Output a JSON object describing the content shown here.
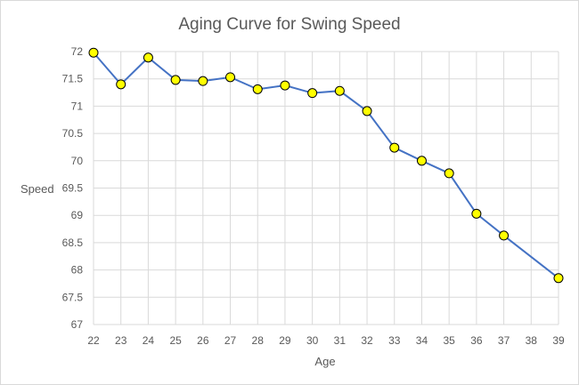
{
  "chart_data": {
    "type": "line",
    "title": "Aging Curve for Swing Speed",
    "xlabel": "Age",
    "ylabel": "Speed",
    "x": [
      22,
      23,
      24,
      25,
      26,
      27,
      28,
      29,
      30,
      31,
      32,
      33,
      34,
      35,
      36,
      37,
      38,
      39
    ],
    "x_tick_labels": [
      "22",
      "23",
      "24",
      "25",
      "26",
      "27",
      "28",
      "29",
      "30",
      "31",
      "32",
      "33",
      "34",
      "35",
      "36",
      "37",
      "38",
      "39"
    ],
    "series": [
      {
        "x": [
          22,
          23,
          24,
          25,
          26,
          27,
          28,
          29,
          30,
          31,
          32,
          33,
          34,
          35,
          36,
          37,
          39
        ],
        "values": [
          71.98,
          71.4,
          71.89,
          71.48,
          71.46,
          71.53,
          71.31,
          71.38,
          71.24,
          71.28,
          70.91,
          70.24,
          70.0,
          69.77,
          69.03,
          68.63,
          67.85
        ]
      }
    ],
    "ylim": [
      67,
      72
    ],
    "y_ticks": [
      67,
      67.5,
      68,
      68.5,
      69,
      69.5,
      70,
      70.5,
      71,
      71.5,
      72
    ],
    "y_tick_labels": [
      "67",
      "67.5",
      "68",
      "68.5",
      "69",
      "69.5",
      "70",
      "70.5",
      "71",
      "71.5",
      "72"
    ],
    "grid": true,
    "legend": "none",
    "colors": {
      "line": "#4472c4",
      "marker_fill": "#ffff00",
      "marker_stroke": "#000000",
      "grid": "#d9d9d9",
      "text": "#595959"
    }
  }
}
